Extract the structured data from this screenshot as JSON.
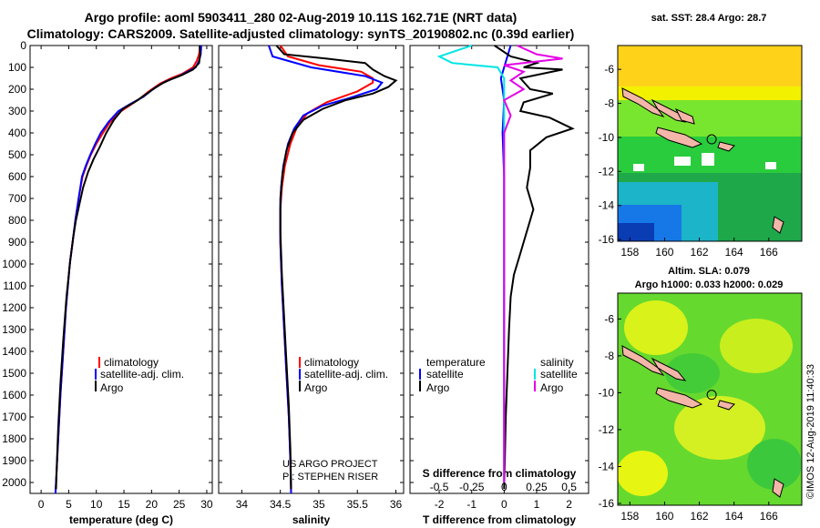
{
  "header": {
    "line1": "Argo profile: aoml 5903411_280 02-Aug-2019 10.11S 162.71E (NRT data)",
    "line2": "Climatology: CARS2009. Satellite-adjusted climatology: synTS_20190802.nc (0.39d earlier)"
  },
  "colors": {
    "climatology": "#ff0000",
    "satellite": "#0000ff",
    "argo": "#000000",
    "salinity_satellite": "#00e5e5",
    "salinity_argo": "#e600e6",
    "land": "#f4b6a8"
  },
  "legends": {
    "climatology": "climatology",
    "satellite_adj": "satellite-adj. clim.",
    "argo": "Argo",
    "temperature": "temperature",
    "salinity": "salinity",
    "satellite": "satellite"
  },
  "credits": {
    "project": "US ARGO PROJECT",
    "pi": "PI: STEPHEN RISER",
    "imos": "©IMOS 12-Aug-2019 11:40:33"
  },
  "maps": {
    "sst_title": "sat. SST: 28.4 Argo: 28.7",
    "sla_title1": "Altim. SLA: 0.079",
    "sla_title2": "Argo h1000: 0.033 h2000: 0.029",
    "lat_ticks": [
      "-6",
      "-8",
      "-10",
      "-12",
      "-14",
      "-16"
    ],
    "lon_ticks": [
      "158",
      "160",
      "162",
      "164",
      "166"
    ],
    "float_position": {
      "lon": 162.71,
      "lat": -10.11
    }
  },
  "chart_data": [
    {
      "type": "line",
      "xlabel": "temperature (deg C)",
      "xlim": [
        -2,
        31
      ],
      "xticks": [
        0,
        5,
        10,
        15,
        20,
        25,
        30
      ],
      "ylim": [
        2050,
        0
      ],
      "yticks": [
        0,
        100,
        200,
        300,
        400,
        500,
        600,
        700,
        800,
        900,
        1000,
        1100,
        1200,
        1300,
        1400,
        1500,
        1600,
        1700,
        1800,
        1900,
        2000
      ],
      "series": [
        {
          "name": "climatology",
          "color": "#ff0000",
          "points": [
            [
              28.8,
              0
            ],
            [
              28.6,
              40
            ],
            [
              28.2,
              70
            ],
            [
              27.5,
              100
            ],
            [
              25.5,
              130
            ],
            [
              23.5,
              150
            ],
            [
              21.5,
              175
            ],
            [
              19.5,
              210
            ],
            [
              17.5,
              250
            ],
            [
              14.5,
              300
            ],
            [
              12.5,
              350
            ],
            [
              11.2,
              400
            ],
            [
              10.0,
              450
            ],
            [
              9.0,
              500
            ],
            [
              8.2,
              550
            ],
            [
              7.5,
              600
            ],
            [
              6.8,
              700
            ],
            [
              6.2,
              800
            ],
            [
              5.7,
              900
            ],
            [
              5.2,
              1000
            ],
            [
              4.5,
              1200
            ],
            [
              4.0,
              1400
            ],
            [
              3.5,
              1600
            ],
            [
              3.1,
              1800
            ],
            [
              2.7,
              2000
            ],
            [
              2.6,
              2050
            ]
          ]
        },
        {
          "name": "satellite-adj. clim.",
          "color": "#0000ff",
          "points": [
            [
              29.0,
              0
            ],
            [
              28.9,
              40
            ],
            [
              28.6,
              70
            ],
            [
              28.0,
              100
            ],
            [
              25.0,
              140
            ],
            [
              22.5,
              165
            ],
            [
              20.5,
              195
            ],
            [
              18.5,
              235
            ],
            [
              16.0,
              270
            ],
            [
              14.0,
              300
            ],
            [
              12.2,
              350
            ],
            [
              10.8,
              400
            ],
            [
              9.8,
              450
            ],
            [
              8.9,
              500
            ],
            [
              8.1,
              550
            ],
            [
              7.4,
              600
            ],
            [
              6.8,
              700
            ],
            [
              6.2,
              800
            ],
            [
              5.7,
              900
            ],
            [
              5.2,
              1000
            ],
            [
              4.5,
              1200
            ],
            [
              4.0,
              1400
            ],
            [
              3.5,
              1600
            ],
            [
              3.1,
              1800
            ],
            [
              2.7,
              2000
            ],
            [
              2.6,
              2050
            ]
          ]
        },
        {
          "name": "Argo",
          "color": "#000000",
          "points": [
            [
              28.7,
              0
            ],
            [
              28.8,
              40
            ],
            [
              28.6,
              80
            ],
            [
              27.5,
              110
            ],
            [
              25.5,
              135
            ],
            [
              23.5,
              155
            ],
            [
              21.8,
              175
            ],
            [
              20.0,
              205
            ],
            [
              17.5,
              250
            ],
            [
              14.8,
              290
            ],
            [
              13.2,
              340
            ],
            [
              11.8,
              400
            ],
            [
              10.7,
              460
            ],
            [
              9.5,
              520
            ],
            [
              8.5,
              580
            ],
            [
              7.6,
              650
            ],
            [
              7.0,
              720
            ],
            [
              6.3,
              800
            ],
            [
              5.8,
              880
            ],
            [
              5.3,
              980
            ],
            [
              4.6,
              1150
            ],
            [
              4.0,
              1350
            ],
            [
              3.5,
              1550
            ],
            [
              3.1,
              1750
            ],
            [
              2.8,
              1950
            ],
            [
              2.7,
              2030
            ]
          ]
        }
      ]
    },
    {
      "type": "line",
      "xlabel": "salinity",
      "xlim": [
        33.7,
        36.1
      ],
      "xticks": [
        34,
        34.5,
        35,
        35.5,
        36
      ],
      "ylim": [
        2050,
        0
      ],
      "series": [
        {
          "name": "climatology",
          "color": "#ff0000",
          "points": [
            [
              34.5,
              0
            ],
            [
              34.6,
              50
            ],
            [
              35.0,
              90
            ],
            [
              35.55,
              120
            ],
            [
              35.7,
              150
            ],
            [
              35.7,
              170
            ],
            [
              35.5,
              210
            ],
            [
              35.1,
              260
            ],
            [
              34.85,
              310
            ],
            [
              34.72,
              370
            ],
            [
              34.63,
              450
            ],
            [
              34.56,
              550
            ],
            [
              34.52,
              650
            ],
            [
              34.5,
              750
            ],
            [
              34.5,
              900
            ],
            [
              34.52,
              1100
            ],
            [
              34.55,
              1300
            ],
            [
              34.58,
              1500
            ],
            [
              34.61,
              1700
            ],
            [
              34.63,
              1900
            ],
            [
              34.64,
              2050
            ]
          ]
        },
        {
          "name": "satellite-adj. clim.",
          "color": "#0000ff",
          "points": [
            [
              34.35,
              0
            ],
            [
              34.4,
              50
            ],
            [
              34.9,
              100
            ],
            [
              35.6,
              140
            ],
            [
              35.82,
              170
            ],
            [
              35.75,
              200
            ],
            [
              35.4,
              240
            ],
            [
              35.05,
              275
            ],
            [
              34.8,
              320
            ],
            [
              34.68,
              380
            ],
            [
              34.6,
              450
            ],
            [
              34.54,
              550
            ],
            [
              34.51,
              650
            ],
            [
              34.5,
              750
            ],
            [
              34.5,
              900
            ],
            [
              34.52,
              1100
            ],
            [
              34.55,
              1300
            ],
            [
              34.58,
              1500
            ],
            [
              34.61,
              1700
            ],
            [
              34.63,
              1900
            ],
            [
              34.64,
              2050
            ]
          ]
        },
        {
          "name": "Argo",
          "color": "#000000",
          "points": [
            [
              34.45,
              0
            ],
            [
              34.55,
              40
            ],
            [
              35.1,
              60
            ],
            [
              35.6,
              80
            ],
            [
              35.7,
              110
            ],
            [
              35.85,
              140
            ],
            [
              36.0,
              160
            ],
            [
              35.9,
              190
            ],
            [
              35.7,
              220
            ],
            [
              35.35,
              250
            ],
            [
              35.05,
              290
            ],
            [
              34.8,
              340
            ],
            [
              34.66,
              400
            ],
            [
              34.58,
              480
            ],
            [
              34.53,
              580
            ],
            [
              34.5,
              700
            ],
            [
              34.5,
              850
            ],
            [
              34.52,
              1050
            ],
            [
              34.55,
              1250
            ],
            [
              34.58,
              1450
            ],
            [
              34.61,
              1650
            ],
            [
              34.63,
              1850
            ],
            [
              34.64,
              2030
            ]
          ]
        }
      ]
    },
    {
      "type": "line",
      "xlabel": "T difference from climatology",
      "x2label": "S difference from climatology",
      "xlim": [
        -2.9,
        2.6
      ],
      "xticks": [
        -2,
        -1,
        0,
        1,
        2
      ],
      "x2ticks": [
        "-0.5",
        "-0.25",
        "0",
        "0.25",
        "0.5"
      ],
      "x2tick_values": [
        -0.5,
        -0.25,
        0,
        0.25,
        0.5
      ],
      "ylim": [
        2050,
        0
      ],
      "series": [
        {
          "name": "temperature satellite",
          "color": "#0000ff",
          "points": [
            [
              0.2,
              0
            ],
            [
              0.1,
              50
            ],
            [
              0.0,
              100
            ],
            [
              -0.1,
              150
            ],
            [
              0.0,
              250
            ],
            [
              -0.05,
              400
            ],
            [
              0.0,
              600
            ],
            [
              0.0,
              1000
            ],
            [
              0.0,
              1400
            ],
            [
              0.0,
              2000
            ]
          ]
        },
        {
          "name": "temperature Argo",
          "color": "#000000",
          "points": [
            [
              -0.3,
              0
            ],
            [
              0.2,
              50
            ],
            [
              1.0,
              80
            ],
            [
              0.6,
              100
            ],
            [
              1.8,
              110
            ],
            [
              0.5,
              150
            ],
            [
              0.8,
              200
            ],
            [
              1.5,
              220
            ],
            [
              0.6,
              260
            ],
            [
              0.5,
              300
            ],
            [
              1.4,
              330
            ],
            [
              2.1,
              380
            ],
            [
              1.3,
              420
            ],
            [
              0.8,
              480
            ],
            [
              0.8,
              560
            ],
            [
              0.7,
              650
            ],
            [
              0.9,
              750
            ],
            [
              0.7,
              850
            ],
            [
              0.5,
              950
            ],
            [
              0.3,
              1050
            ],
            [
              0.2,
              1150
            ],
            [
              0.15,
              1300
            ],
            [
              0.1,
              1500
            ],
            [
              0.05,
              1700
            ],
            [
              0.02,
              1900
            ],
            [
              0.0,
              2030
            ]
          ]
        },
        {
          "name": "salinity satellite",
          "color": "#00e5e5",
          "points": [
            [
              -0.25,
              0
            ],
            [
              -0.5,
              50
            ],
            [
              -0.4,
              80
            ],
            [
              -0.05,
              100
            ],
            [
              0.0,
              150
            ],
            [
              0.0,
              300
            ],
            [
              0.0,
              500
            ],
            [
              0.0,
              800
            ],
            [
              0.0,
              1200
            ],
            [
              0.0,
              1600
            ],
            [
              0.0,
              2000
            ]
          ]
        },
        {
          "name": "salinity Argo",
          "color": "#e600e6",
          "points": [
            [
              0.1,
              0
            ],
            [
              0.25,
              40
            ],
            [
              0.45,
              60
            ],
            [
              0.0,
              90
            ],
            [
              0.15,
              120
            ],
            [
              0.05,
              160
            ],
            [
              0.15,
              200
            ],
            [
              0.0,
              250
            ],
            [
              0.05,
              320
            ],
            [
              0.0,
              400
            ],
            [
              0.0,
              600
            ],
            [
              0.0,
              1000
            ],
            [
              0.0,
              1400
            ],
            [
              0.0,
              2000
            ]
          ]
        }
      ]
    }
  ]
}
